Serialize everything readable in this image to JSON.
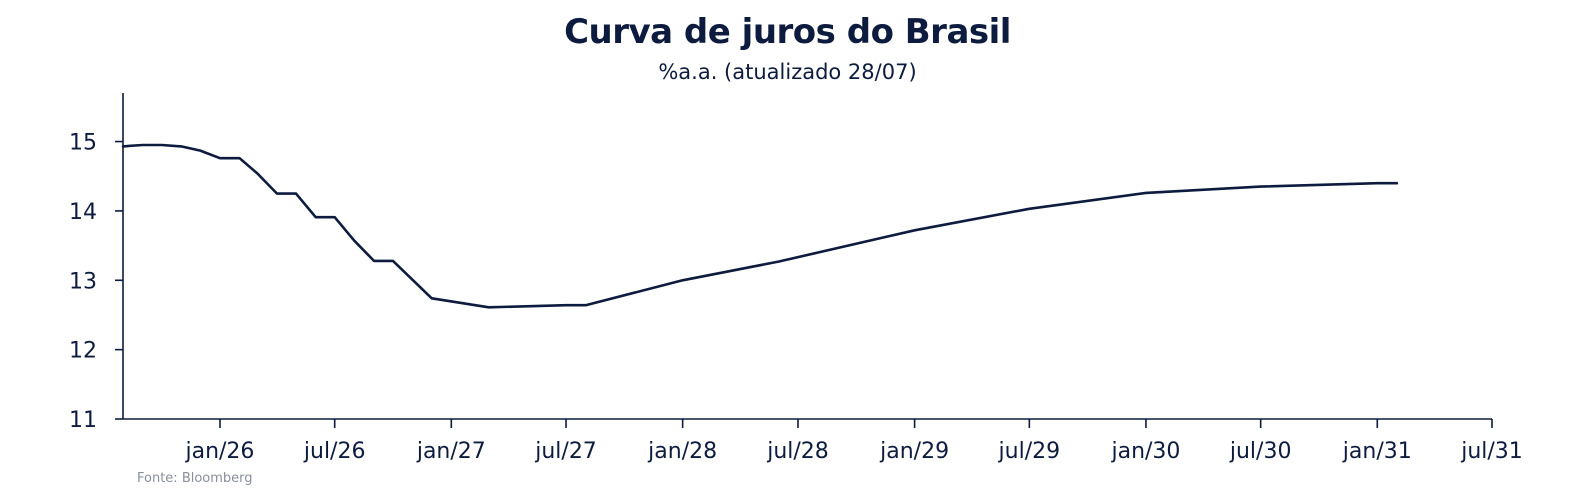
{
  "title": "Curva de juros do Brasil",
  "subtitle": "%a.a. (atualizado 28/07)",
  "source": "Fonte: Bloomberg",
  "colors": {
    "line": "#0d1b3e",
    "axis": "#0d1b3e",
    "text": "#0d1b3e",
    "source": "#8a8f9a"
  },
  "chart_data": {
    "type": "line",
    "title": "Curva de juros do Brasil",
    "subtitle": "%a.a. (atualizado 28/07)",
    "xlabel": "",
    "ylabel": "",
    "ylim": [
      11,
      15.7
    ],
    "xlim": [
      "2025-08-01",
      "2031-07-01"
    ],
    "yticks": [
      11,
      12,
      13,
      14,
      15
    ],
    "ytick_labels": [
      "11",
      "12",
      "13",
      "14",
      "15"
    ],
    "xticks": [
      "2026-01-01",
      "2026-07-01",
      "2027-01-01",
      "2027-07-01",
      "2028-01-01",
      "2028-07-01",
      "2029-01-01",
      "2029-07-01",
      "2030-01-01",
      "2030-07-01",
      "2031-01-01",
      "2031-07-01"
    ],
    "xtick_labels": [
      "jan/26",
      "jul/26",
      "jan/27",
      "jul/27",
      "jan/28",
      "jul/28",
      "jan/29",
      "jul/29",
      "jan/30",
      "jul/30",
      "jan/31",
      "jul/31"
    ],
    "grid": false,
    "legend": "none",
    "series": [
      {
        "points": [
          [
            "2025-08-01",
            14.93
          ],
          [
            "2025-09-01",
            14.95
          ],
          [
            "2025-10-01",
            14.95
          ],
          [
            "2025-11-01",
            14.93
          ],
          [
            "2025-12-01",
            14.87
          ],
          [
            "2026-01-01",
            14.76
          ],
          [
            "2026-02-01",
            14.76
          ],
          [
            "2026-03-01",
            14.54
          ],
          [
            "2026-04-01",
            14.25
          ],
          [
            "2026-05-01",
            14.25
          ],
          [
            "2026-06-01",
            13.91
          ],
          [
            "2026-07-01",
            13.91
          ],
          [
            "2026-08-01",
            13.57
          ],
          [
            "2026-09-01",
            13.28
          ],
          [
            "2026-10-01",
            13.28
          ],
          [
            "2026-12-01",
            12.74
          ],
          [
            "2027-03-01",
            12.61
          ],
          [
            "2027-07-01",
            12.64
          ],
          [
            "2027-08-01",
            12.64
          ],
          [
            "2028-01-01",
            13.0
          ],
          [
            "2028-06-01",
            13.27
          ],
          [
            "2029-01-01",
            13.72
          ],
          [
            "2029-07-01",
            14.03
          ],
          [
            "2030-01-01",
            14.26
          ],
          [
            "2030-07-01",
            14.35
          ],
          [
            "2031-01-01",
            14.4
          ],
          [
            "2031-02-01",
            14.4
          ]
        ]
      }
    ],
    "source": "Fonte: Bloomberg"
  }
}
